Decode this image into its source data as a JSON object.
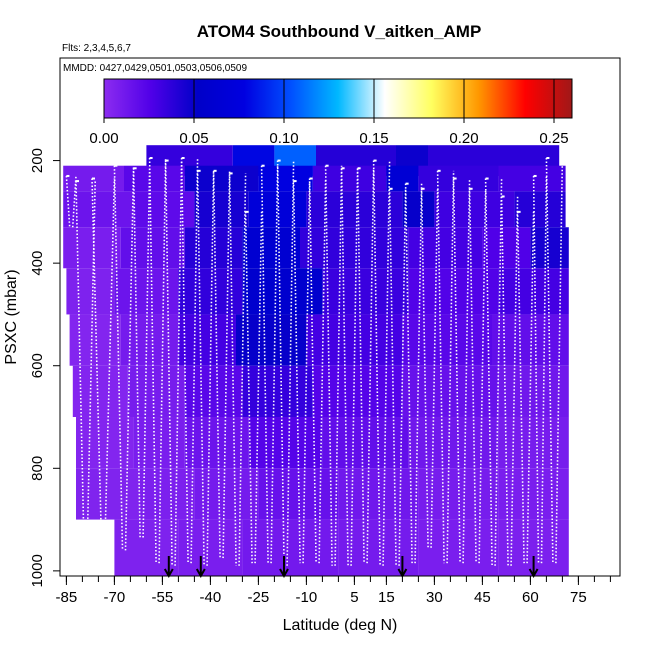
{
  "chart_data": {
    "type": "heatmap",
    "title": "ATOM4 Southbound V_aitken_AMP",
    "flights_note": "Flts: 2,3,4,5,6,7",
    "dates_note": "MMDD: 0427,0429,0501,0503,0506,0509",
    "xlabel": "Latitude (deg N)",
    "ylabel": "PSXC (mbar)",
    "xlim": [
      -87,
      88
    ],
    "ylim": [
      1010,
      0
    ],
    "x_ticks": [
      -85,
      -70,
      -55,
      -40,
      -25,
      -10,
      5,
      15,
      30,
      45,
      60,
      75
    ],
    "x_tick_labels": [
      "-85",
      "-70",
      "-55",
      "-40",
      "-25",
      "-10",
      "5",
      "15",
      "30",
      "45",
      "60",
      "75"
    ],
    "y_ticks": [
      200,
      400,
      600,
      800,
      1000
    ],
    "y_tick_labels": [
      "200",
      "400",
      "600",
      "800",
      "1000"
    ],
    "colorbar": {
      "ticks": [
        0.0,
        0.05,
        0.1,
        0.15,
        0.2,
        0.25
      ],
      "tick_labels": [
        "0.00",
        "0.05",
        "0.10",
        "0.15",
        "0.20",
        "0.25"
      ],
      "range": [
        0.0,
        0.26
      ],
      "colors": [
        "#8c2cf0",
        "#5000e8",
        "#0000c8",
        "#0000e0",
        "#0050ff",
        "#00b8ff",
        "#ffffff",
        "#ffff60",
        "#ff9800",
        "#ff0000",
        "#a01818"
      ]
    },
    "arrows_lat": [
      -53,
      -43,
      -17,
      20,
      61
    ],
    "layers": [
      {
        "p_top": 170,
        "p_bottom": 230,
        "segments": [
          [
            -60,
            -33,
            0.035
          ],
          [
            -33,
            -20,
            0.08
          ],
          [
            -20,
            -7,
            0.108
          ],
          [
            -7,
            18,
            0.04
          ],
          [
            18,
            28,
            0.048
          ],
          [
            28,
            69,
            0.038
          ]
        ]
      },
      {
        "p_top": 210,
        "p_bottom": 260,
        "segments": [
          [
            -86,
            -67,
            0.01
          ],
          [
            -67,
            -48,
            0.022
          ],
          [
            -48,
            -25,
            0.048
          ],
          [
            -25,
            -8,
            0.078
          ],
          [
            -8,
            15,
            0.032
          ],
          [
            15,
            25,
            0.065
          ],
          [
            25,
            50,
            0.035
          ],
          [
            50,
            71,
            0.03
          ]
        ]
      },
      {
        "p_top": 260,
        "p_bottom": 330,
        "segments": [
          [
            -86,
            -64,
            0.014
          ],
          [
            -64,
            -45,
            0.02
          ],
          [
            -45,
            -28,
            0.045
          ],
          [
            -28,
            -10,
            0.07
          ],
          [
            -10,
            20,
            0.038
          ],
          [
            20,
            30,
            0.05
          ],
          [
            30,
            55,
            0.032
          ],
          [
            55,
            71,
            0.04
          ]
        ]
      },
      {
        "p_top": 330,
        "p_bottom": 410,
        "segments": [
          [
            -86,
            -68,
            0.008
          ],
          [
            -68,
            -48,
            0.018
          ],
          [
            -48,
            -30,
            0.04
          ],
          [
            -30,
            -12,
            0.062
          ],
          [
            -12,
            22,
            0.036
          ],
          [
            22,
            45,
            0.03
          ],
          [
            45,
            60,
            0.026
          ],
          [
            60,
            72,
            0.045
          ]
        ]
      },
      {
        "p_top": 410,
        "p_bottom": 500,
        "segments": [
          [
            -85,
            -70,
            0.006
          ],
          [
            -70,
            -50,
            0.014
          ],
          [
            -50,
            -30,
            0.036
          ],
          [
            -30,
            -5,
            0.058
          ],
          [
            -5,
            22,
            0.033
          ],
          [
            22,
            50,
            0.025
          ],
          [
            50,
            72,
            0.03
          ]
        ]
      },
      {
        "p_top": 500,
        "p_bottom": 600,
        "segments": [
          [
            -84,
            -68,
            0.004
          ],
          [
            -68,
            -50,
            0.01
          ],
          [
            -50,
            -32,
            0.03
          ],
          [
            -32,
            -10,
            0.05
          ],
          [
            -10,
            20,
            0.03
          ],
          [
            20,
            48,
            0.022
          ],
          [
            48,
            72,
            0.018
          ]
        ]
      },
      {
        "p_top": 600,
        "p_bottom": 700,
        "segments": [
          [
            -83,
            -66,
            0.004
          ],
          [
            -66,
            -48,
            0.009
          ],
          [
            -48,
            -30,
            0.022
          ],
          [
            -30,
            -8,
            0.035
          ],
          [
            -8,
            20,
            0.024
          ],
          [
            20,
            50,
            0.016
          ],
          [
            50,
            72,
            0.012
          ]
        ]
      },
      {
        "p_top": 700,
        "p_bottom": 800,
        "segments": [
          [
            -82,
            -64,
            0.004
          ],
          [
            -64,
            -48,
            0.008
          ],
          [
            -48,
            -28,
            0.014
          ],
          [
            -28,
            -5,
            0.024
          ],
          [
            -5,
            22,
            0.018
          ],
          [
            22,
            50,
            0.012
          ],
          [
            50,
            72,
            0.009
          ]
        ]
      },
      {
        "p_top": 800,
        "p_bottom": 900,
        "segments": [
          [
            -82,
            -62,
            0.005
          ],
          [
            -62,
            -45,
            0.007
          ],
          [
            -45,
            -25,
            0.01
          ],
          [
            -25,
            0,
            0.016
          ],
          [
            0,
            25,
            0.012
          ],
          [
            25,
            50,
            0.009
          ],
          [
            50,
            72,
            0.008
          ]
        ]
      },
      {
        "p_top": 900,
        "p_bottom": 1010,
        "segments": [
          [
            -70,
            -50,
            0.006
          ],
          [
            -50,
            -30,
            0.008
          ],
          [
            -30,
            0,
            0.011
          ],
          [
            0,
            25,
            0.01
          ],
          [
            25,
            50,
            0.008
          ],
          [
            50,
            72,
            0.007
          ]
        ]
      }
    ],
    "profiles": [
      {
        "lat0": -85,
        "lat1": -82,
        "p_min": 230,
        "p_max": 330
      },
      {
        "lat0": -82,
        "lat1": -76,
        "p_min": 240,
        "p_max": 960
      },
      {
        "lat0": -77,
        "lat1": -70,
        "p_min": 235,
        "p_max": 960
      },
      {
        "lat0": -70,
        "lat1": -64,
        "p_min": 210,
        "p_max": 960
      },
      {
        "lat0": -64,
        "lat1": -59,
        "p_min": 215,
        "p_max": 935
      },
      {
        "lat0": -59,
        "lat1": -54,
        "p_min": 195,
        "p_max": 985
      },
      {
        "lat0": -54,
        "lat1": -49,
        "p_min": 200,
        "p_max": 990
      },
      {
        "lat0": -49,
        "lat1": -44,
        "p_min": 195,
        "p_max": 985
      },
      {
        "lat0": -44,
        "lat1": -39,
        "p_min": 220,
        "p_max": 990
      },
      {
        "lat0": -39,
        "lat1": -34,
        "p_min": 220,
        "p_max": 975
      },
      {
        "lat0": -34,
        "lat1": -29,
        "p_min": 225,
        "p_max": 990
      },
      {
        "lat0": -29,
        "lat1": -24,
        "p_min": 300,
        "p_max": 985
      },
      {
        "lat0": -24,
        "lat1": -19,
        "p_min": 210,
        "p_max": 985
      },
      {
        "lat0": -19,
        "lat1": -14,
        "p_min": 200,
        "p_max": 990
      },
      {
        "lat0": -14,
        "lat1": -9,
        "p_min": 240,
        "p_max": 985
      },
      {
        "lat0": -9,
        "lat1": -4,
        "p_min": 235,
        "p_max": 985
      },
      {
        "lat0": -4,
        "lat1": 1,
        "p_min": 210,
        "p_max": 990
      },
      {
        "lat0": 1,
        "lat1": 6,
        "p_min": 215,
        "p_max": 990
      },
      {
        "lat0": 6,
        "lat1": 11,
        "p_min": 215,
        "p_max": 985
      },
      {
        "lat0": 11,
        "lat1": 16,
        "p_min": 200,
        "p_max": 990
      },
      {
        "lat0": 16,
        "lat1": 21,
        "p_min": 255,
        "p_max": 990
      },
      {
        "lat0": 21,
        "lat1": 26,
        "p_min": 245,
        "p_max": 985
      },
      {
        "lat0": 26,
        "lat1": 31,
        "p_min": 255,
        "p_max": 955
      },
      {
        "lat0": 31,
        "lat1": 36,
        "p_min": 220,
        "p_max": 985
      },
      {
        "lat0": 36,
        "lat1": 41,
        "p_min": 235,
        "p_max": 985
      },
      {
        "lat0": 41,
        "lat1": 46,
        "p_min": 255,
        "p_max": 985
      },
      {
        "lat0": 46,
        "lat1": 51,
        "p_min": 235,
        "p_max": 990
      },
      {
        "lat0": 51,
        "lat1": 56,
        "p_min": 270,
        "p_max": 990
      },
      {
        "lat0": 56,
        "lat1": 61,
        "p_min": 300,
        "p_max": 985
      },
      {
        "lat0": 61,
        "lat1": 65,
        "p_min": 230,
        "p_max": 985
      },
      {
        "lat0": 65,
        "lat1": 70,
        "p_min": 195,
        "p_max": 985
      }
    ]
  }
}
